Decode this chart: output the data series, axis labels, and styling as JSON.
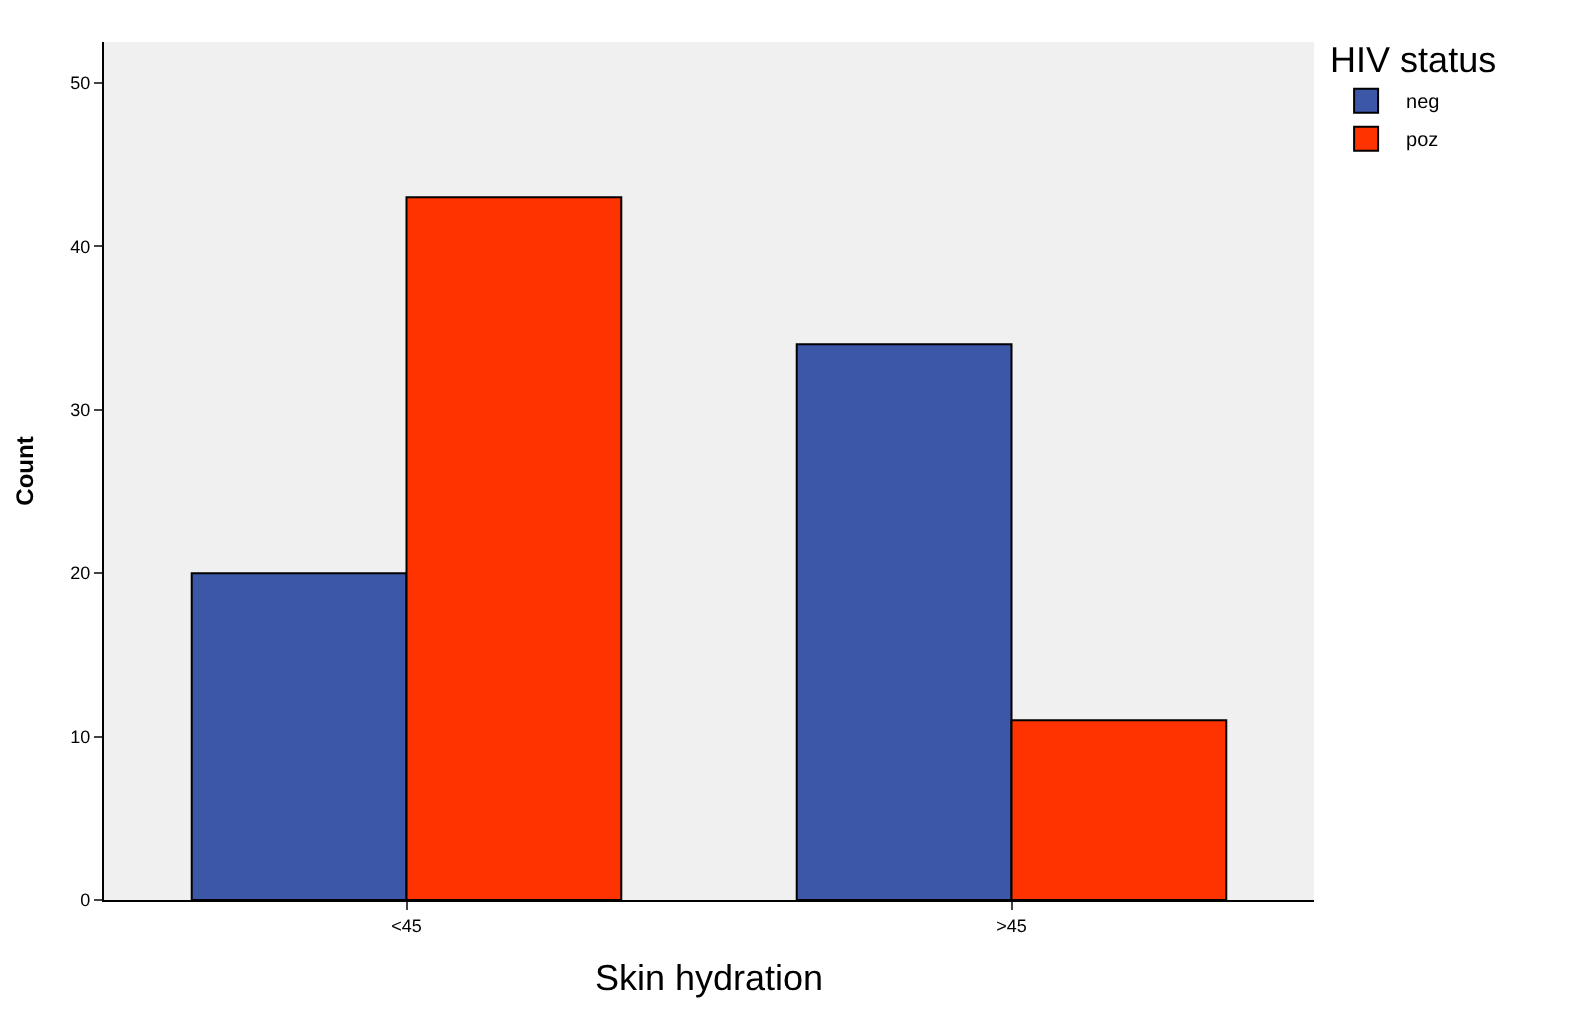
{
  "chart_data": {
    "type": "bar",
    "xlabel": "Skin hydration",
    "ylabel": "Count",
    "legend_title": "HIV status",
    "categories": [
      "<45",
      ">45"
    ],
    "series": [
      {
        "name": "neg",
        "color": "#3c56a8",
        "values": [
          20,
          34
        ]
      },
      {
        "name": "poz",
        "color": "#ff3300",
        "values": [
          43,
          11
        ]
      }
    ],
    "ylim": [
      0,
      52.5
    ],
    "yticks": [
      0,
      10,
      20,
      30,
      40,
      50
    ],
    "grid": false,
    "legend": "top right"
  }
}
